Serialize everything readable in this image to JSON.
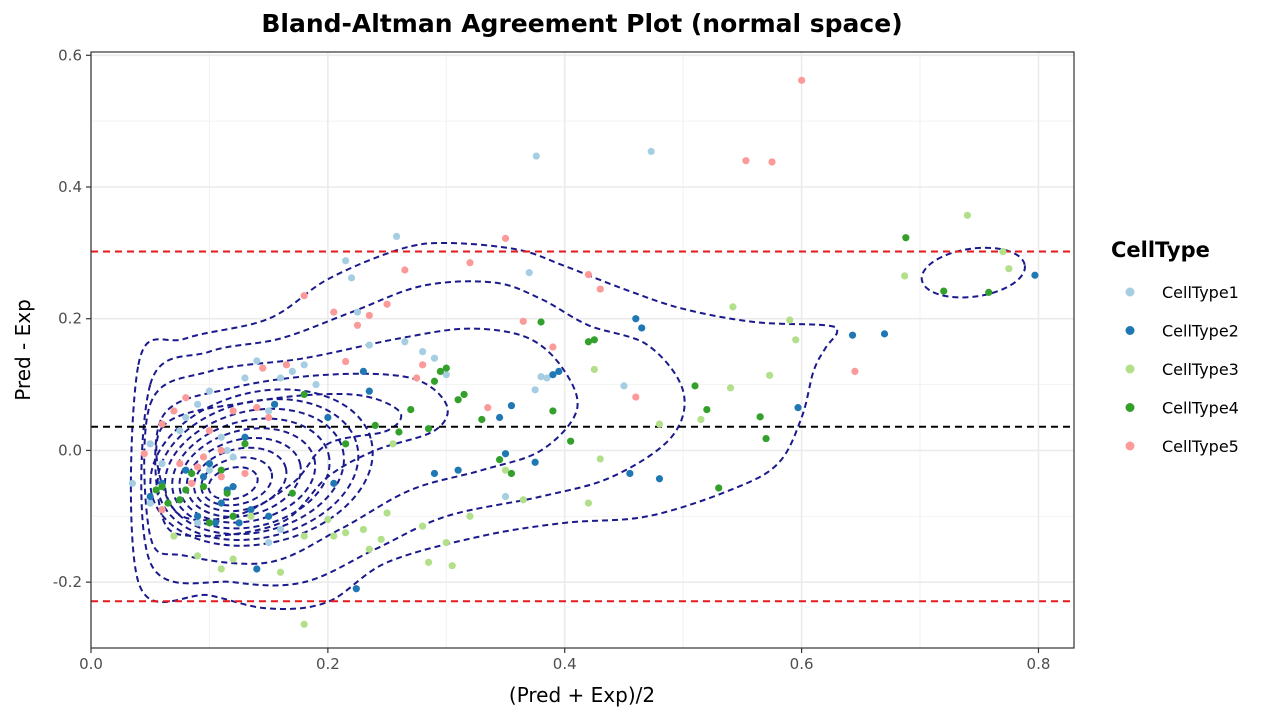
{
  "chart_data": {
    "type": "scatter",
    "title": "Bland-Altman Agreement Plot (normal space)",
    "xlabel": "(Pred + Exp)/2",
    "ylabel": "Pred - Exp",
    "xlim": [
      0.0,
      0.83
    ],
    "ylim": [
      -0.3,
      0.605
    ],
    "x_ticks": [
      0.0,
      0.2,
      0.4,
      0.6,
      0.8
    ],
    "x_tick_labels": [
      "0.0",
      "0.2",
      "0.4",
      "0.6",
      "0.8"
    ],
    "y_ticks": [
      -0.2,
      0.0,
      0.2,
      0.4,
      0.6
    ],
    "y_tick_labels": [
      "-0.2",
      "0.0",
      "0.2",
      "0.4",
      "0.6"
    ],
    "grid": true,
    "legend": {
      "title": "CellType",
      "position": "right"
    },
    "reference_lines": [
      {
        "y": 0.036,
        "color": "#000000",
        "style": "dashed"
      },
      {
        "y": 0.302,
        "color": "#e41a1c",
        "style": "dashed"
      },
      {
        "y": -0.229,
        "color": "#e41a1c",
        "style": "dashed"
      }
    ],
    "density_contours": {
      "color": "#1a1a8c",
      "style": "dashed",
      "peak": [
        0.12,
        -0.05
      ]
    },
    "series": [
      {
        "name": "CellType1",
        "color": "#a6cee3",
        "x": [
          0.035,
          0.05,
          0.06,
          0.075,
          0.08,
          0.09,
          0.1,
          0.1,
          0.11,
          0.12,
          0.13,
          0.14,
          0.15,
          0.15,
          0.16,
          0.17,
          0.18,
          0.19,
          0.215,
          0.22,
          0.225,
          0.235,
          0.258,
          0.265,
          0.28,
          0.29,
          0.3,
          0.35,
          0.37,
          0.375,
          0.376,
          0.38,
          0.385,
          0.45,
          0.473,
          0.05,
          0.09,
          0.115,
          0.16
        ],
        "y": [
          -0.05,
          0.01,
          -0.02,
          0.03,
          0.05,
          0.07,
          0.09,
          -0.03,
          0.02,
          -0.01,
          0.11,
          0.136,
          0.06,
          -0.14,
          0.11,
          0.12,
          0.13,
          0.1,
          0.288,
          0.262,
          0.21,
          0.16,
          0.325,
          0.165,
          0.15,
          0.14,
          0.115,
          -0.07,
          0.27,
          0.092,
          0.447,
          0.112,
          0.11,
          0.098,
          0.454,
          -0.08,
          -0.11,
          0.0,
          -0.12
        ]
      },
      {
        "name": "CellType2",
        "color": "#1f78b4",
        "x": [
          0.05,
          0.06,
          0.075,
          0.08,
          0.09,
          0.1,
          0.105,
          0.11,
          0.115,
          0.12,
          0.125,
          0.13,
          0.14,
          0.15,
          0.155,
          0.2,
          0.205,
          0.224,
          0.23,
          0.235,
          0.29,
          0.31,
          0.345,
          0.35,
          0.355,
          0.375,
          0.39,
          0.395,
          0.455,
          0.46,
          0.465,
          0.48,
          0.597,
          0.643,
          0.67,
          0.797,
          0.095,
          0.135
        ],
        "y": [
          -0.07,
          -0.05,
          -0.075,
          -0.03,
          -0.1,
          -0.02,
          -0.11,
          -0.08,
          -0.06,
          -0.055,
          -0.11,
          0.02,
          -0.18,
          -0.1,
          0.07,
          0.05,
          -0.05,
          -0.21,
          0.12,
          0.09,
          -0.035,
          -0.03,
          0.05,
          -0.005,
          0.068,
          -0.018,
          0.115,
          0.12,
          -0.035,
          0.2,
          0.186,
          -0.043,
          0.065,
          0.175,
          0.177,
          0.266,
          -0.04,
          -0.09
        ]
      },
      {
        "name": "CellType3",
        "color": "#b2df8a",
        "x": [
          0.06,
          0.07,
          0.09,
          0.1,
          0.11,
          0.12,
          0.135,
          0.16,
          0.18,
          0.2,
          0.205,
          0.215,
          0.23,
          0.235,
          0.245,
          0.25,
          0.255,
          0.28,
          0.285,
          0.3,
          0.305,
          0.32,
          0.35,
          0.365,
          0.42,
          0.425,
          0.43,
          0.48,
          0.515,
          0.54,
          0.542,
          0.573,
          0.59,
          0.595,
          0.687,
          0.74,
          0.77,
          0.775,
          0.18,
          0.085
        ],
        "y": [
          -0.09,
          -0.13,
          -0.16,
          -0.11,
          -0.18,
          -0.165,
          -0.1,
          -0.185,
          -0.264,
          -0.105,
          -0.13,
          -0.125,
          -0.12,
          -0.15,
          -0.135,
          -0.095,
          0.01,
          -0.115,
          -0.17,
          -0.14,
          -0.175,
          -0.1,
          -0.03,
          -0.075,
          -0.08,
          0.123,
          -0.013,
          0.04,
          0.047,
          0.095,
          0.218,
          0.114,
          0.198,
          0.168,
          0.265,
          0.357,
          0.302,
          0.276,
          -0.13,
          -0.05
        ]
      },
      {
        "name": "CellType4",
        "color": "#33a02c",
        "x": [
          0.055,
          0.06,
          0.065,
          0.075,
          0.08,
          0.085,
          0.095,
          0.1,
          0.11,
          0.115,
          0.12,
          0.13,
          0.17,
          0.18,
          0.215,
          0.24,
          0.26,
          0.27,
          0.285,
          0.29,
          0.295,
          0.3,
          0.31,
          0.315,
          0.33,
          0.345,
          0.355,
          0.38,
          0.39,
          0.405,
          0.42,
          0.425,
          0.51,
          0.52,
          0.53,
          0.565,
          0.57,
          0.688,
          0.72,
          0.758
        ],
        "y": [
          -0.06,
          -0.055,
          -0.08,
          -0.075,
          -0.06,
          -0.035,
          -0.055,
          -0.11,
          -0.03,
          -0.065,
          -0.1,
          0.01,
          -0.065,
          0.085,
          0.01,
          0.038,
          0.028,
          0.062,
          0.033,
          0.105,
          0.12,
          0.125,
          0.077,
          0.085,
          0.047,
          -0.014,
          -0.035,
          0.195,
          0.06,
          0.014,
          0.165,
          0.168,
          0.098,
          0.062,
          -0.057,
          0.051,
          0.018,
          0.323,
          0.242,
          0.24
        ]
      },
      {
        "name": "CellType5",
        "color": "#fb9a99",
        "x": [
          0.045,
          0.06,
          0.07,
          0.075,
          0.08,
          0.085,
          0.09,
          0.095,
          0.1,
          0.11,
          0.12,
          0.13,
          0.14,
          0.145,
          0.15,
          0.165,
          0.18,
          0.205,
          0.215,
          0.225,
          0.235,
          0.25,
          0.265,
          0.275,
          0.28,
          0.32,
          0.335,
          0.35,
          0.365,
          0.39,
          0.42,
          0.43,
          0.46,
          0.553,
          0.575,
          0.6,
          0.645,
          0.06,
          0.11
        ],
        "y": [
          -0.005,
          -0.09,
          0.06,
          -0.02,
          0.08,
          -0.05,
          -0.025,
          -0.01,
          0.03,
          0.0,
          0.06,
          -0.035,
          0.065,
          0.125,
          0.05,
          0.13,
          0.235,
          0.21,
          0.135,
          0.19,
          0.205,
          0.222,
          0.274,
          0.11,
          0.13,
          0.285,
          0.065,
          0.322,
          0.196,
          0.157,
          0.267,
          0.245,
          0.081,
          0.44,
          0.438,
          0.562,
          0.12,
          0.04,
          -0.04
        ]
      }
    ]
  }
}
